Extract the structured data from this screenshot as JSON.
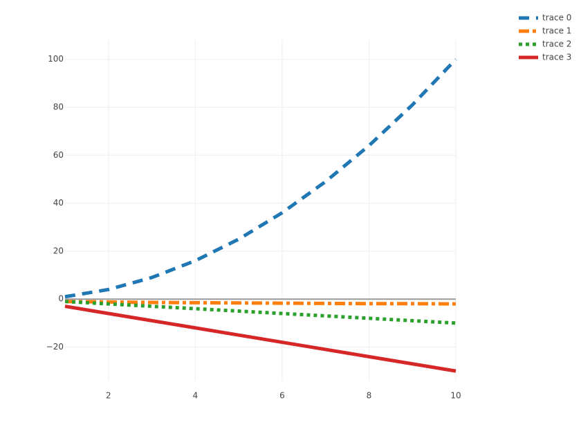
{
  "chart_data": {
    "type": "line",
    "x": [
      1,
      2,
      3,
      4,
      5,
      6,
      7,
      8,
      9,
      10
    ],
    "series": [
      {
        "name": "trace 0",
        "color": "#1f77b4",
        "dash": "dash",
        "values": [
          1,
          4,
          9,
          16,
          25,
          36,
          49,
          64,
          81,
          100
        ]
      },
      {
        "name": "trace 1",
        "color": "#ff7f0e",
        "dash": "dashdot",
        "values": [
          -1,
          -1.2,
          -1.4,
          -1.5,
          -1.6,
          -1.7,
          -1.8,
          -1.9,
          -1.9,
          -2
        ]
      },
      {
        "name": "trace 2",
        "color": "#2ca02c",
        "dash": "dot",
        "values": [
          -1,
          -2,
          -3,
          -4,
          -5,
          -6,
          -7,
          -8,
          -9,
          -10
        ]
      },
      {
        "name": "trace 3",
        "color": "#d62728",
        "dash": "solid",
        "values": [
          -3,
          -6,
          -9,
          -12,
          -15,
          -18,
          -21,
          -24,
          -27,
          -30
        ]
      }
    ],
    "xlim": [
      1,
      10
    ],
    "xticks": [
      2,
      4,
      6,
      8,
      10
    ],
    "ylim": [
      -34,
      108
    ],
    "yticks": [
      {
        "value": -20,
        "label": "−20"
      },
      0,
      20,
      40,
      60,
      80,
      100
    ],
    "grid": true,
    "legend": "top-right"
  }
}
